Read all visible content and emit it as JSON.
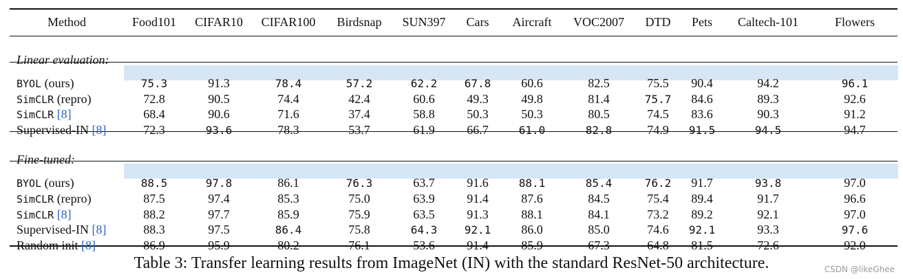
{
  "table": {
    "header": {
      "method": "Method",
      "datasets": [
        "Food101",
        "CIFAR10",
        "CIFAR100",
        "Birdsnap",
        "SUN397",
        "Cars",
        "Aircraft",
        "VOC2007",
        "DTD",
        "Pets",
        "Caltech-101",
        "Flowers"
      ]
    },
    "sections": [
      {
        "title": "Linear evaluation:",
        "rows": [
          {
            "name": "BYOL",
            "suffix": " (ours)",
            "cite": "",
            "name_mono": true,
            "highlight": true,
            "values": [
              "75.3",
              "91.3",
              "78.4",
              "57.2",
              "62.2",
              "67.8",
              "60.6",
              "82.5",
              "75.5",
              "90.4",
              "94.2",
              "96.1"
            ],
            "best": [
              true,
              false,
              true,
              true,
              true,
              true,
              false,
              false,
              false,
              false,
              false,
              true
            ]
          },
          {
            "name": "SimCLR",
            "suffix": " (repro)",
            "cite": "",
            "name_mono": true,
            "highlight": false,
            "values": [
              "72.8",
              "90.5",
              "74.4",
              "42.4",
              "60.6",
              "49.3",
              "49.8",
              "81.4",
              "75.7",
              "84.6",
              "89.3",
              "92.6"
            ],
            "best": [
              false,
              false,
              false,
              false,
              false,
              false,
              false,
              false,
              true,
              false,
              false,
              false
            ]
          },
          {
            "name": "SimCLR",
            "suffix": " ",
            "cite": "[8]",
            "name_mono": true,
            "highlight": false,
            "values": [
              "68.4",
              "90.6",
              "71.6",
              "37.4",
              "58.8",
              "50.3",
              "50.3",
              "80.5",
              "74.5",
              "83.6",
              "90.3",
              "91.2"
            ],
            "best": [
              false,
              false,
              false,
              false,
              false,
              false,
              false,
              false,
              false,
              false,
              false,
              false
            ]
          },
          {
            "name": "Supervised-IN",
            "suffix": " ",
            "cite": "[8]",
            "name_mono": false,
            "highlight": false,
            "values": [
              "72.3",
              "93.6",
              "78.3",
              "53.7",
              "61.9",
              "66.7",
              "61.0",
              "82.8",
              "74.9",
              "91.5",
              "94.5",
              "94.7"
            ],
            "best": [
              false,
              true,
              false,
              false,
              false,
              false,
              true,
              true,
              false,
              true,
              true,
              false
            ]
          }
        ]
      },
      {
        "title": "Fine-tuned:",
        "rows": [
          {
            "name": "BYOL",
            "suffix": " (ours)",
            "cite": "",
            "name_mono": true,
            "highlight": true,
            "values": [
              "88.5",
              "97.8",
              "86.1",
              "76.3",
              "63.7",
              "91.6",
              "88.1",
              "85.4",
              "76.2",
              "91.7",
              "93.8",
              "97.0"
            ],
            "best": [
              true,
              true,
              false,
              true,
              false,
              false,
              true,
              true,
              true,
              false,
              true,
              false
            ]
          },
          {
            "name": "SimCLR",
            "suffix": " (repro)",
            "cite": "",
            "name_mono": true,
            "highlight": false,
            "values": [
              "87.5",
              "97.4",
              "85.3",
              "75.0",
              "63.9",
              "91.4",
              "87.6",
              "84.5",
              "75.4",
              "89.4",
              "91.7",
              "96.6"
            ],
            "best": [
              false,
              false,
              false,
              false,
              false,
              false,
              false,
              false,
              false,
              false,
              false,
              false
            ]
          },
          {
            "name": "SimCLR",
            "suffix": " ",
            "cite": "[8]",
            "name_mono": true,
            "highlight": false,
            "values": [
              "88.2",
              "97.7",
              "85.9",
              "75.9",
              "63.5",
              "91.3",
              "88.1",
              "84.1",
              "73.2",
              "89.2",
              "92.1",
              "97.0"
            ],
            "best": [
              false,
              false,
              false,
              false,
              false,
              false,
              false,
              false,
              false,
              false,
              false,
              false
            ]
          },
          {
            "name": "Supervised-IN",
            "suffix": " ",
            "cite": "[8]",
            "name_mono": false,
            "highlight": false,
            "values": [
              "88.3",
              "97.5",
              "86.4",
              "75.8",
              "64.3",
              "92.1",
              "86.0",
              "85.0",
              "74.6",
              "92.1",
              "93.3",
              "97.6"
            ],
            "best": [
              false,
              false,
              true,
              false,
              true,
              true,
              false,
              false,
              false,
              true,
              false,
              true
            ]
          },
          {
            "name": "Random init",
            "suffix": " ",
            "cite": "[8]",
            "name_mono": false,
            "highlight": false,
            "values": [
              "86.9",
              "95.9",
              "80.2",
              "76.1",
              "53.6",
              "91.4",
              "85.9",
              "67.3",
              "64.8",
              "81.5",
              "72.6",
              "92.0"
            ],
            "best": [
              false,
              false,
              false,
              false,
              false,
              false,
              false,
              false,
              false,
              false,
              false,
              false
            ]
          }
        ]
      }
    ]
  },
  "caption": "Table 3: Transfer learning results from ImageNet (IN) with the standard ResNet-50 architecture.",
  "watermark": "CSDN @likeGhee",
  "colors": {
    "highlight": "#d7e6f4",
    "cite": "#2a62b8",
    "rule": "#111111"
  }
}
